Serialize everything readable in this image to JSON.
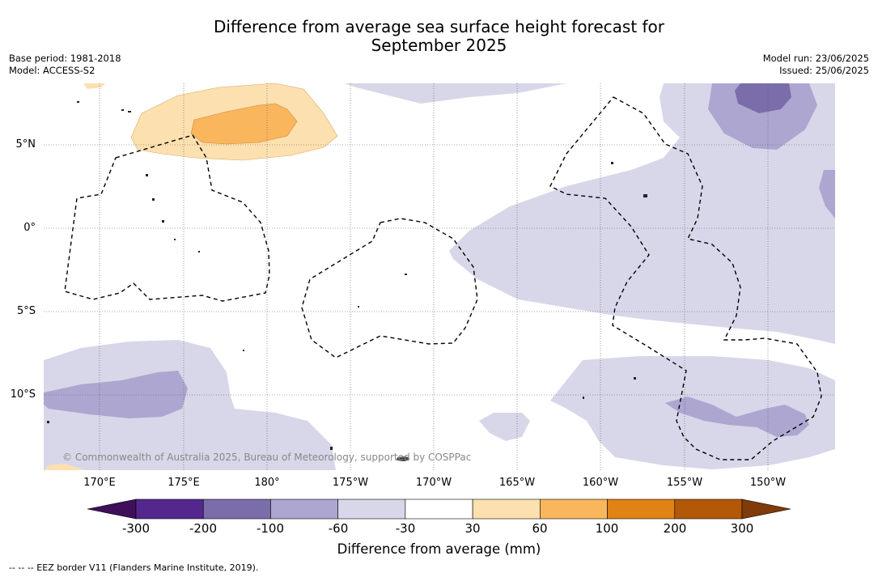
{
  "title_line1": "Difference from average sea surface height forecast for",
  "title_line2": "September 2025",
  "meta_left": {
    "base_period": "Base period: 1981-2018",
    "model": "Model: ACCESS-S2"
  },
  "meta_right": {
    "model_run": "Model run: 23/06/2025",
    "issued": "Issued: 25/06/2025"
  },
  "axes": {
    "lat_ticks": [
      "5°N",
      "0°",
      "5°S",
      "10°S"
    ],
    "lon_ticks": [
      "170°E",
      "175°E",
      "180°",
      "175°W",
      "170°W",
      "165°W",
      "160°W",
      "155°W",
      "150°W"
    ]
  },
  "copyright": "© Commonwealth of Australia 2025, Bureau of Meteorology, supported by COSPPac",
  "colorbar": {
    "title": "Difference from average (mm)",
    "labels": [
      "-300",
      "-200",
      "-100",
      "-60",
      "-30",
      "30",
      "60",
      "100",
      "200",
      "300"
    ],
    "colors": [
      "#3f0f5a",
      "#54278f",
      "#7b6daa",
      "#ada6d0",
      "#d7d7e9",
      "#ffffff",
      "#fde0b0",
      "#f9b65c",
      "#e08214",
      "#b35806",
      "#7f3b08"
    ]
  },
  "footnote": "--  --  -- EEZ border V11 (Flanders Marine Institute, 2019)."
}
